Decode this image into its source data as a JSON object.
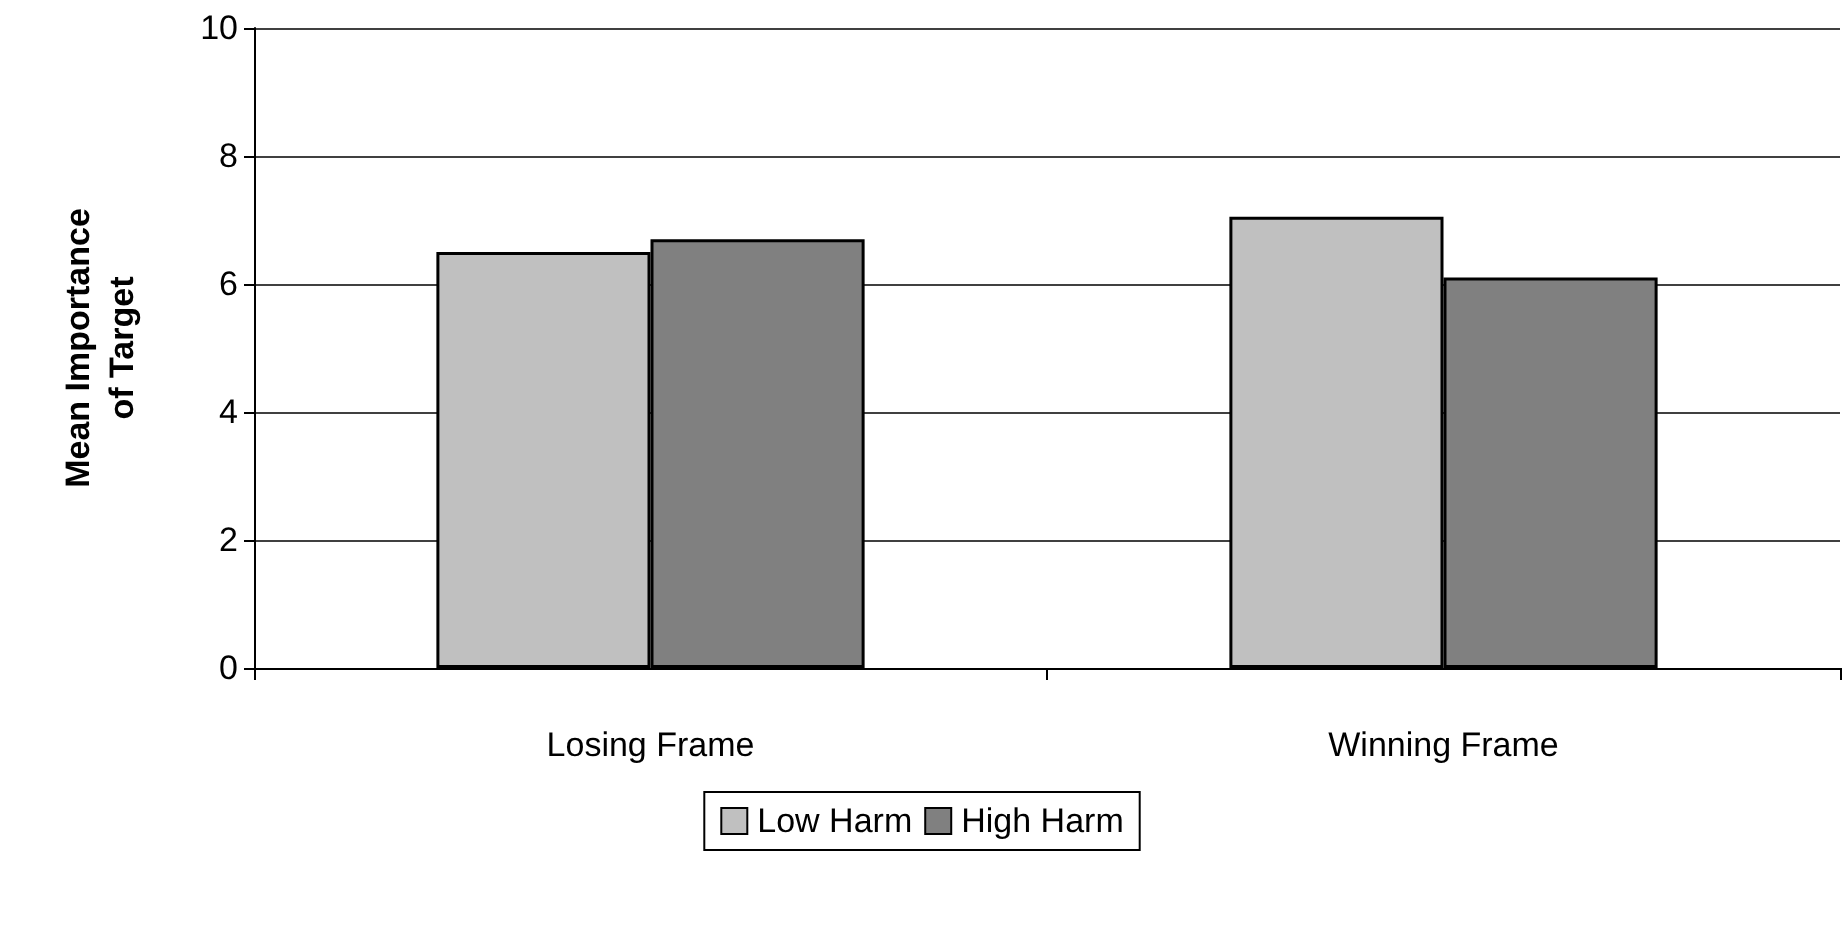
{
  "chart_data": {
    "type": "bar",
    "ylabel": "Mean Importance\nof Target",
    "categories": [
      "Losing Frame",
      "Winning Frame"
    ],
    "series": [
      {
        "name": "Low Harm",
        "color": "#c0c0c0",
        "values": [
          6.5,
          7.05
        ]
      },
      {
        "name": "High Harm",
        "color": "#808080",
        "values": [
          6.7,
          6.1
        ]
      }
    ],
    "ylim": [
      0,
      10
    ],
    "yticks": [
      0,
      2,
      4,
      6,
      8,
      10
    ],
    "grid": "y",
    "legend": "bottom"
  }
}
